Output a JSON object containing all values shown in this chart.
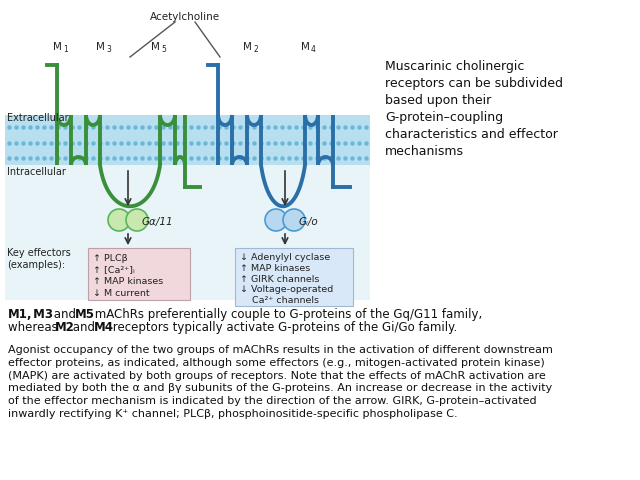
{
  "background_color": "#ffffff",
  "figure_width": 6.4,
  "figure_height": 4.8,
  "dpi": 100,
  "green_color": "#3a8f3a",
  "blue_color": "#2a6fa8",
  "gprotein_green_fill": "#c8e8b0",
  "gprotein_green_edge": "#5ab55a",
  "gprotein_blue_fill": "#b8d8f0",
  "gprotein_blue_edge": "#4a9ad4",
  "membrane_fill": "#b8dff0",
  "membrane_dots": "#6ab8d8",
  "membrane_bg": "#d8eff8",
  "intracell_bg": "#e8f4f8",
  "effector_green_fill": "#f0d8dc",
  "effector_green_edge": "#c0a0a8",
  "effector_blue_fill": "#d8e8f8",
  "effector_blue_edge": "#a0b8d0",
  "caption": "Muscarinic cholinergic\nreceptors can be subdivided\nbased upon their\nG-protein–coupling\ncharacteristics and effector\nmechanisms",
  "effector_green_lines": [
    "↑ PLCβ",
    "↑ [Ca²⁺]ᵢ",
    "↑ MAP kinases",
    "↓ M current"
  ],
  "effector_blue_lines": [
    "↓ Adenylyl cyclase",
    "↑ MAP kinases",
    "↑ GIRK channels",
    "↓ Voltage-operated",
    "Ca²⁺ channels"
  ],
  "gq11_label": "Gα/11",
  "gio_label": "Gᵢ/o",
  "para1_line1_pre": ", ",
  "para1_line1_post": " mAChRs preferentially couple to G-proteins of the Gq/G11 family,",
  "para1_line2_pre": "whereas ",
  "para1_line2_post": " receptors typically activate G-proteins of the Gi/Go family.",
  "para2": "Agonist occupancy of the two groups of mAChRs results in the activation of different downstream\neffector proteins, as indicated, although some effectors (e.g., mitogen-activated protein kinase)\n(MAPK) are activated by both groups of receptors. Note that the effects of mAChR activation are\nmediated by both the α and βγ subunits of the G-proteins. An increase or decrease in the activity\nof the effector mechanism is indicated by the direction of the arrow. GIRK, G-protein–activated\ninwardly rectifying K⁺ channel; PLCβ, phosphoinositide-specific phospholipase C."
}
